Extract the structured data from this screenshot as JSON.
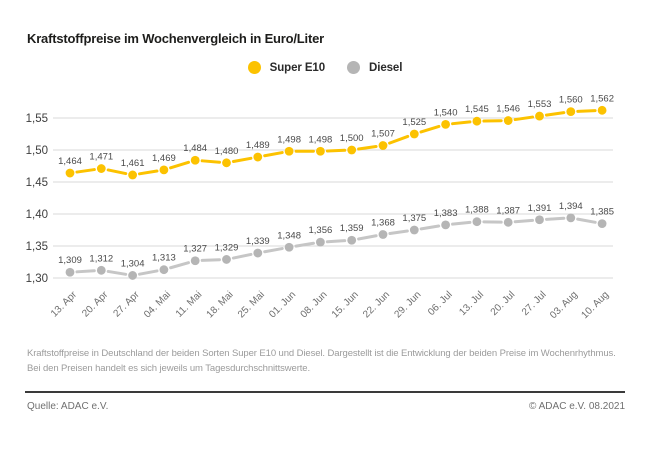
{
  "title": "Kraftstoffpreise im Wochenvergleich in Euro/Liter",
  "legend": [
    {
      "label": "Super E10",
      "color": "#FCC200"
    },
    {
      "label": "Diesel",
      "color": "#B5B5B5"
    }
  ],
  "chart_data": {
    "type": "line",
    "unit": "Euro/Liter",
    "categories": [
      "13. Apr",
      "20. Apr",
      "27. Apr",
      "04. Mai",
      "11. Mai",
      "18. Mai",
      "25. Mai",
      "01. Jun",
      "08. Jun",
      "15. Jun",
      "22. Jun",
      "29. Jun",
      "06. Jul",
      "13. Jul",
      "20. Jul",
      "27. Jul",
      "03. Aug",
      "10. Aug"
    ],
    "series": [
      {
        "name": "Super E10",
        "color": "#FCC200",
        "line_color": "#FCC200",
        "values": [
          1.464,
          1.471,
          1.461,
          1.469,
          1.484,
          1.48,
          1.489,
          1.498,
          1.498,
          1.5,
          1.507,
          1.525,
          1.54,
          1.545,
          1.546,
          1.553,
          1.56,
          1.562
        ]
      },
      {
        "name": "Diesel",
        "color": "#B5B5B5",
        "line_color": "#C6C6C6",
        "values": [
          1.309,
          1.312,
          1.304,
          1.313,
          1.327,
          1.329,
          1.339,
          1.348,
          1.356,
          1.359,
          1.368,
          1.375,
          1.383,
          1.388,
          1.387,
          1.391,
          1.394,
          1.385
        ]
      }
    ],
    "yticks": [
      1.55,
      1.5,
      1.45,
      1.4,
      1.35,
      1.3
    ],
    "ylim": [
      1.3,
      1.57
    ],
    "grid": true,
    "legend_position": "top-center",
    "decimal_separator": ",",
    "label_color": "#4a4a4a",
    "ytick_color": "#3e3e3e",
    "xtick_color": "#6e6e6e",
    "grid_color": "#dadada"
  },
  "footnote": "Kraftstoffpreise in Deutschland der beiden Sorten Super E10 und Diesel. Dargestellt ist die Entwicklung der beiden Preise im Wochenrhythmus. Bei den Preisen handelt es sich jeweils um Tagesdurchschnittswerte.",
  "source": "Quelle: ADAC e.V.",
  "copyright": "© ADAC e.V. 08.2021"
}
